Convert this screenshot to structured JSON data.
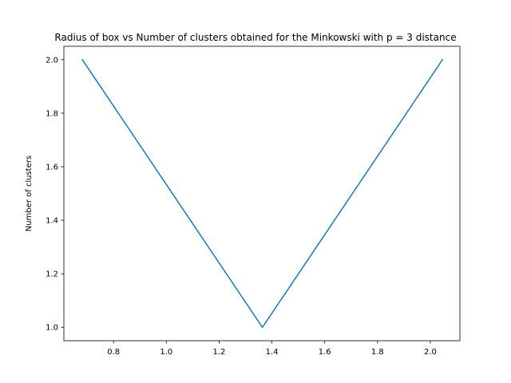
{
  "chart_data": {
    "type": "line",
    "title": "Radius of box vs Number of clusters obtained for the Minkowski with p = 3 distance",
    "xlabel": "",
    "ylabel": "Number of clusters",
    "xlim": [
      0.612,
      2.112
    ],
    "ylim": [
      0.95,
      2.05
    ],
    "x_ticks": [
      0.8,
      1.0,
      1.2,
      1.4,
      1.6,
      1.8,
      2.0
    ],
    "x_tick_labels": [
      "0.8",
      "1.0",
      "1.2",
      "1.4",
      "1.6",
      "1.8",
      "2.0"
    ],
    "y_ticks": [
      1.0,
      1.2,
      1.4,
      1.6,
      1.8,
      2.0
    ],
    "y_tick_labels": [
      "1.0",
      "1.2",
      "1.4",
      "1.6",
      "1.8",
      "2.0"
    ],
    "grid": false,
    "series": [
      {
        "color": "#1f77b4",
        "x": [
          0.682,
          1.364,
          2.046
        ],
        "y": [
          2,
          1,
          2
        ]
      }
    ]
  }
}
